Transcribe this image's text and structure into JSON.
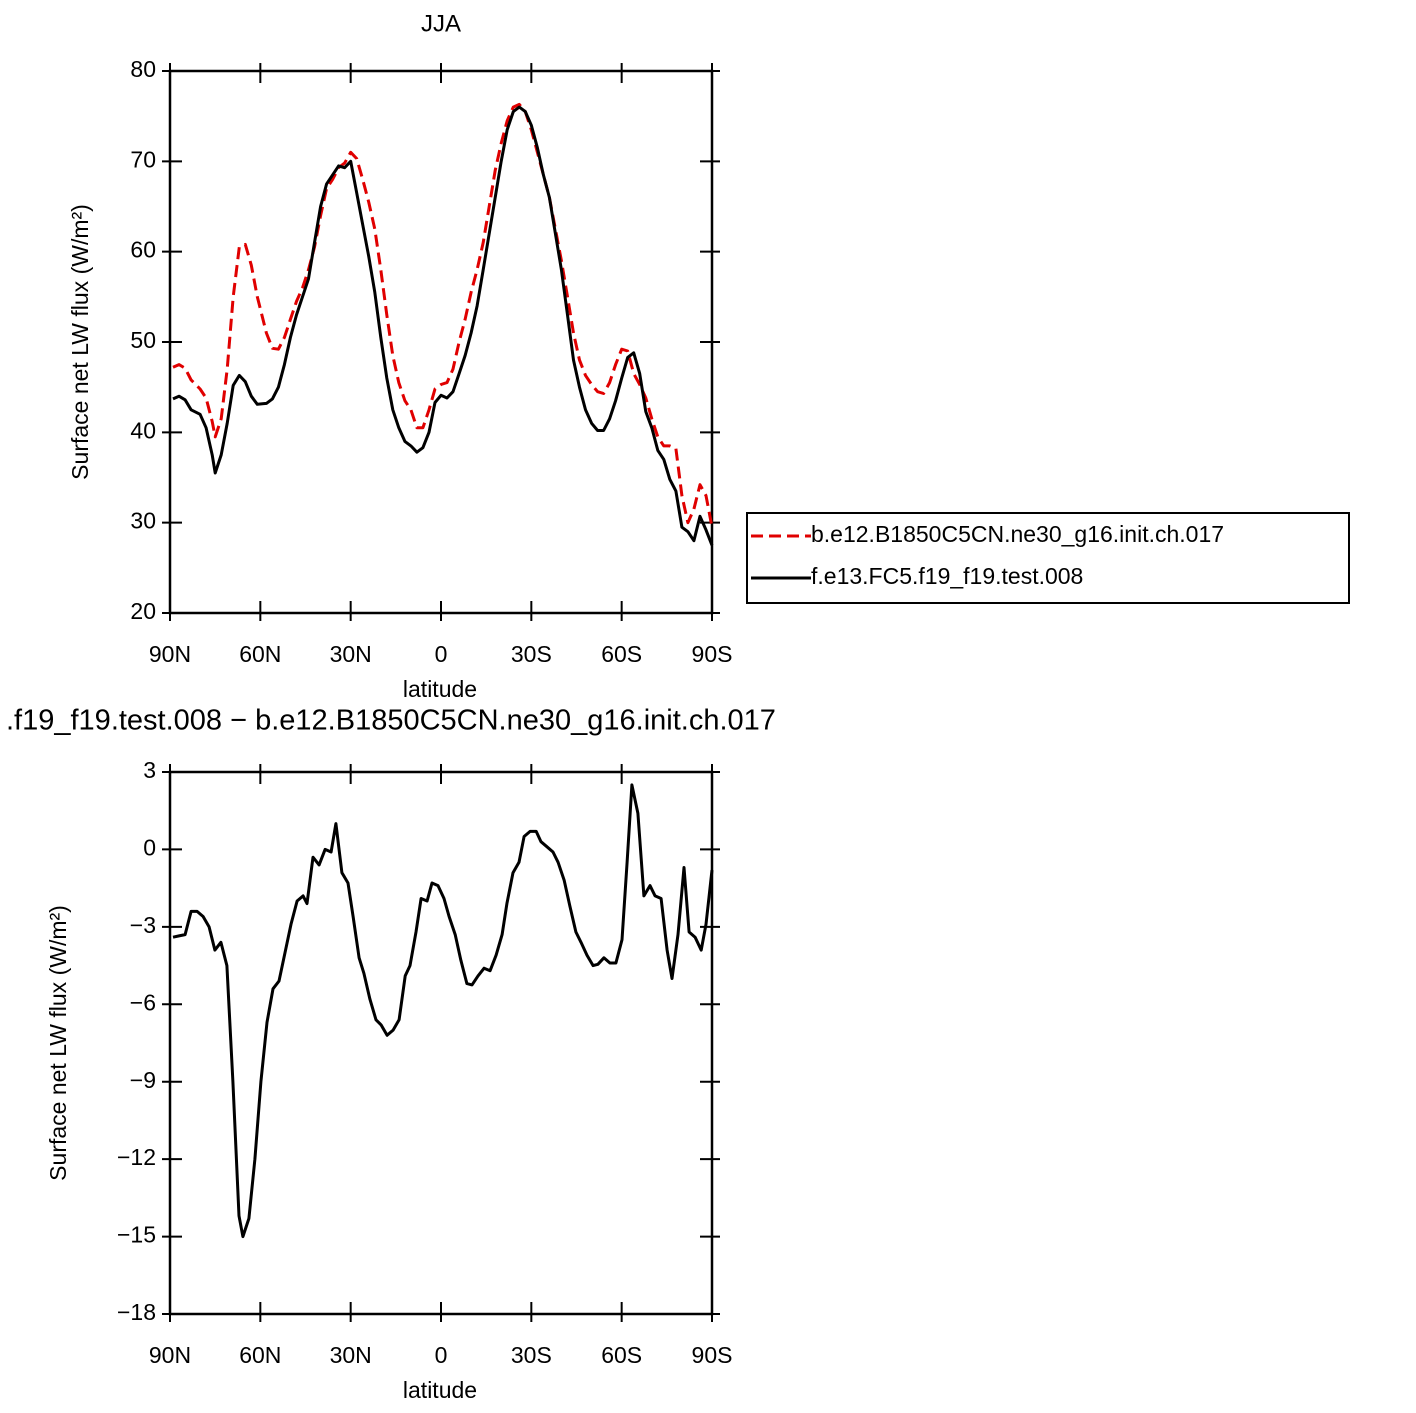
{
  "chart_data": [
    {
      "type": "line",
      "title": "JJA",
      "xlabel": "latitude",
      "ylabel": "Surface net LW flux (W/m²)",
      "x": [
        89,
        87,
        85,
        83,
        80,
        78,
        76,
        75,
        73,
        71,
        69,
        67,
        65,
        63,
        61,
        58,
        56,
        54,
        52,
        50,
        48,
        46,
        44,
        42,
        40,
        38,
        36,
        34,
        32,
        30,
        28,
        26,
        24,
        22,
        20,
        18,
        16,
        14,
        12,
        10,
        8,
        6,
        4,
        2,
        0,
        -2,
        -4,
        -6,
        -8,
        -10,
        -12,
        -14,
        -16,
        -18,
        -20,
        -22,
        -24,
        -26,
        -28,
        -30,
        -32,
        -34,
        -36,
        -38,
        -40,
        -42,
        -44,
        -46,
        -48,
        -50,
        -52,
        -54,
        -56,
        -58,
        -60,
        -62,
        -64,
        -66,
        -68,
        -70,
        -72,
        -74,
        -76,
        -78,
        -80,
        -82,
        -84,
        -86,
        -88,
        -90
      ],
      "series": [
        {
          "name": "b.e12.B1850C5CN.ne30_g16.init.ch.017",
          "color": "#e00000",
          "dash": true,
          "values": [
            47.2,
            47.5,
            47.1,
            45.8,
            44.8,
            43.8,
            41.2,
            39.5,
            41.5,
            47,
            55,
            60.5,
            60.8,
            58.5,
            55,
            51,
            49.3,
            49.2,
            50.5,
            52.5,
            54.5,
            56,
            58,
            60.5,
            64,
            67,
            68,
            69.3,
            69.8,
            71,
            70.3,
            68,
            65.5,
            62.5,
            58,
            53,
            48.5,
            45.5,
            43.5,
            42.5,
            40.5,
            40.5,
            42.5,
            44.8,
            45.3,
            45.5,
            47,
            50,
            52.5,
            55.5,
            58,
            61,
            65,
            69,
            72,
            74.5,
            76,
            76.3,
            75.5,
            73.5,
            71,
            68.5,
            66,
            62.5,
            59,
            55,
            51,
            48,
            46.3,
            45.3,
            44.5,
            44.3,
            45.5,
            47.5,
            49.2,
            49,
            46.5,
            45.3,
            43.8,
            41.5,
            39.5,
            38.5,
            38.5,
            38.2,
            33,
            30,
            31.5,
            34.2,
            33,
            29.5
          ]
        },
        {
          "name": "f.e13.FC5.f19_f19.test.008",
          "color": "#000000",
          "dash": false,
          "values": [
            43.7,
            44,
            43.6,
            42.5,
            42,
            40.5,
            37.5,
            35.5,
            37.5,
            41,
            45.2,
            46.3,
            45.6,
            44,
            43.1,
            43.2,
            43.7,
            45,
            47.5,
            50.5,
            53,
            55,
            57,
            61,
            65,
            67.5,
            68.5,
            69.5,
            69.3,
            70,
            66.5,
            63,
            59.5,
            55.5,
            50.5,
            46,
            42.5,
            40.5,
            39,
            38.5,
            37.8,
            38.3,
            40,
            43.3,
            44.1,
            43.8,
            44.5,
            46.5,
            48.5,
            51,
            54,
            58,
            62,
            66,
            70,
            73.5,
            75.5,
            76,
            75.5,
            74,
            71.5,
            68.5,
            66,
            62,
            58,
            53,
            48,
            45,
            42.5,
            41,
            40.2,
            40.2,
            41.5,
            43.5,
            46,
            48.3,
            48.8,
            46.5,
            42.3,
            40.5,
            38,
            37,
            34.8,
            33.5,
            29.5,
            29,
            28,
            30.7,
            29.2,
            27.5
          ]
        }
      ],
      "xlim": [
        90,
        -90
      ],
      "xticks": [
        {
          "value": 90,
          "label": "90N"
        },
        {
          "value": 60,
          "label": "60N"
        },
        {
          "value": 30,
          "label": "30N"
        },
        0,
        {
          "value": -30,
          "label": "30S"
        },
        {
          "value": -60,
          "label": "60S"
        },
        {
          "value": -90,
          "label": "90S"
        }
      ],
      "ylim": [
        20,
        80
      ],
      "yticks": [
        20,
        30,
        40,
        50,
        60,
        70,
        80
      ],
      "legend": "right"
    },
    {
      "type": "line",
      "title": ".f19_f19.test.008 − b.e12.B1850C5CN.ne30_g16.init.ch.017",
      "xlabel": "latitude",
      "ylabel": "Surface net LW flux (W/m²)",
      "x": [
        89,
        87,
        85,
        83,
        81,
        79,
        77,
        75.1,
        73.1,
        71.1,
        69.1,
        67.1,
        65.8,
        63.8,
        61.8,
        59.8,
        57.8,
        55.8,
        53.8,
        51.8,
        49.8,
        47.8,
        45.8,
        44.5,
        42.5,
        40.5,
        38.5,
        36.5,
        34.9,
        32.9,
        30.9,
        29.2,
        27.2,
        25.6,
        23.6,
        21.6,
        19.9,
        17.9,
        15.9,
        13.9,
        11.9,
        10.3,
        8.3,
        6.6,
        4.6,
        3,
        1,
        -1,
        -2.7,
        -4.7,
        -6.6,
        -8.6,
        -10.3,
        -12.3,
        -14.3,
        -16.3,
        -18.3,
        -20.3,
        -21.9,
        -23.9,
        -25.9,
        -27.6,
        -29.6,
        -31.6,
        -33.2,
        -35.2,
        -37.2,
        -38.9,
        -40.9,
        -42.8,
        -44.8,
        -46.5,
        -48.5,
        -50.5,
        -52.1,
        -54.1,
        -56.1,
        -58.1,
        -60.1,
        -61.8,
        -63.4,
        -65.4,
        -67.4,
        -69.4,
        -71.1,
        -73.1,
        -75.1,
        -76.7,
        -78.7,
        -80.7,
        -82.4,
        -84.4,
        -86.4,
        -88,
        -90
      ],
      "color": "#000000",
      "values": [
        -3.4,
        -3.35,
        -3.3,
        -2.4,
        -2.4,
        -2.6,
        -3,
        -3.9,
        -3.6,
        -4.5,
        -9,
        -14.2,
        -15,
        -14.3,
        -12,
        -9,
        -6.7,
        -5.4,
        -5.1,
        -4,
        -2.9,
        -2,
        -1.8,
        -2.1,
        -0.3,
        -0.6,
        0,
        -0.1,
        1,
        -0.9,
        -1.3,
        -2.6,
        -4.2,
        -4.8,
        -5.8,
        -6.6,
        -6.8,
        -7.2,
        -7,
        -6.6,
        -4.9,
        -4.5,
        -3.2,
        -1.9,
        -2,
        -1.3,
        -1.4,
        -1.9,
        -2.6,
        -3.3,
        -4.3,
        -5.2,
        -5.25,
        -4.9,
        -4.6,
        -4.7,
        -4.1,
        -3.3,
        -2.1,
        -0.9,
        -0.5,
        0.5,
        0.7,
        0.7,
        0.3,
        0.1,
        -0.1,
        -0.5,
        -1.2,
        -2.2,
        -3.2,
        -3.6,
        -4.1,
        -4.5,
        -4.45,
        -4.2,
        -4.4,
        -4.4,
        -3.5,
        -0.5,
        2.5,
        1.4,
        -1.8,
        -1.4,
        -1.8,
        -1.9,
        -3.9,
        -5,
        -3.3,
        -0.7,
        -3.2,
        -3.4,
        -3.9,
        -2.9,
        -0.8
      ],
      "xlim": [
        90,
        -90
      ],
      "xticks": [
        {
          "value": 90,
          "label": "90N"
        },
        {
          "value": 60,
          "label": "60N"
        },
        {
          "value": 30,
          "label": "30N"
        },
        0,
        {
          "value": -30,
          "label": "30S"
        },
        {
          "value": -60,
          "label": "60S"
        },
        {
          "value": -90,
          "label": "90S"
        }
      ],
      "ylim": [
        -18,
        3
      ],
      "yticks": [
        {
          "value": -18,
          "label": "−18"
        },
        {
          "value": -15,
          "label": "−15"
        },
        {
          "value": -12,
          "label": "−12"
        },
        {
          "value": -9,
          "label": "−9"
        },
        {
          "value": -6,
          "label": "−6"
        },
        {
          "value": -3,
          "label": "−3"
        },
        0,
        3
      ]
    }
  ]
}
